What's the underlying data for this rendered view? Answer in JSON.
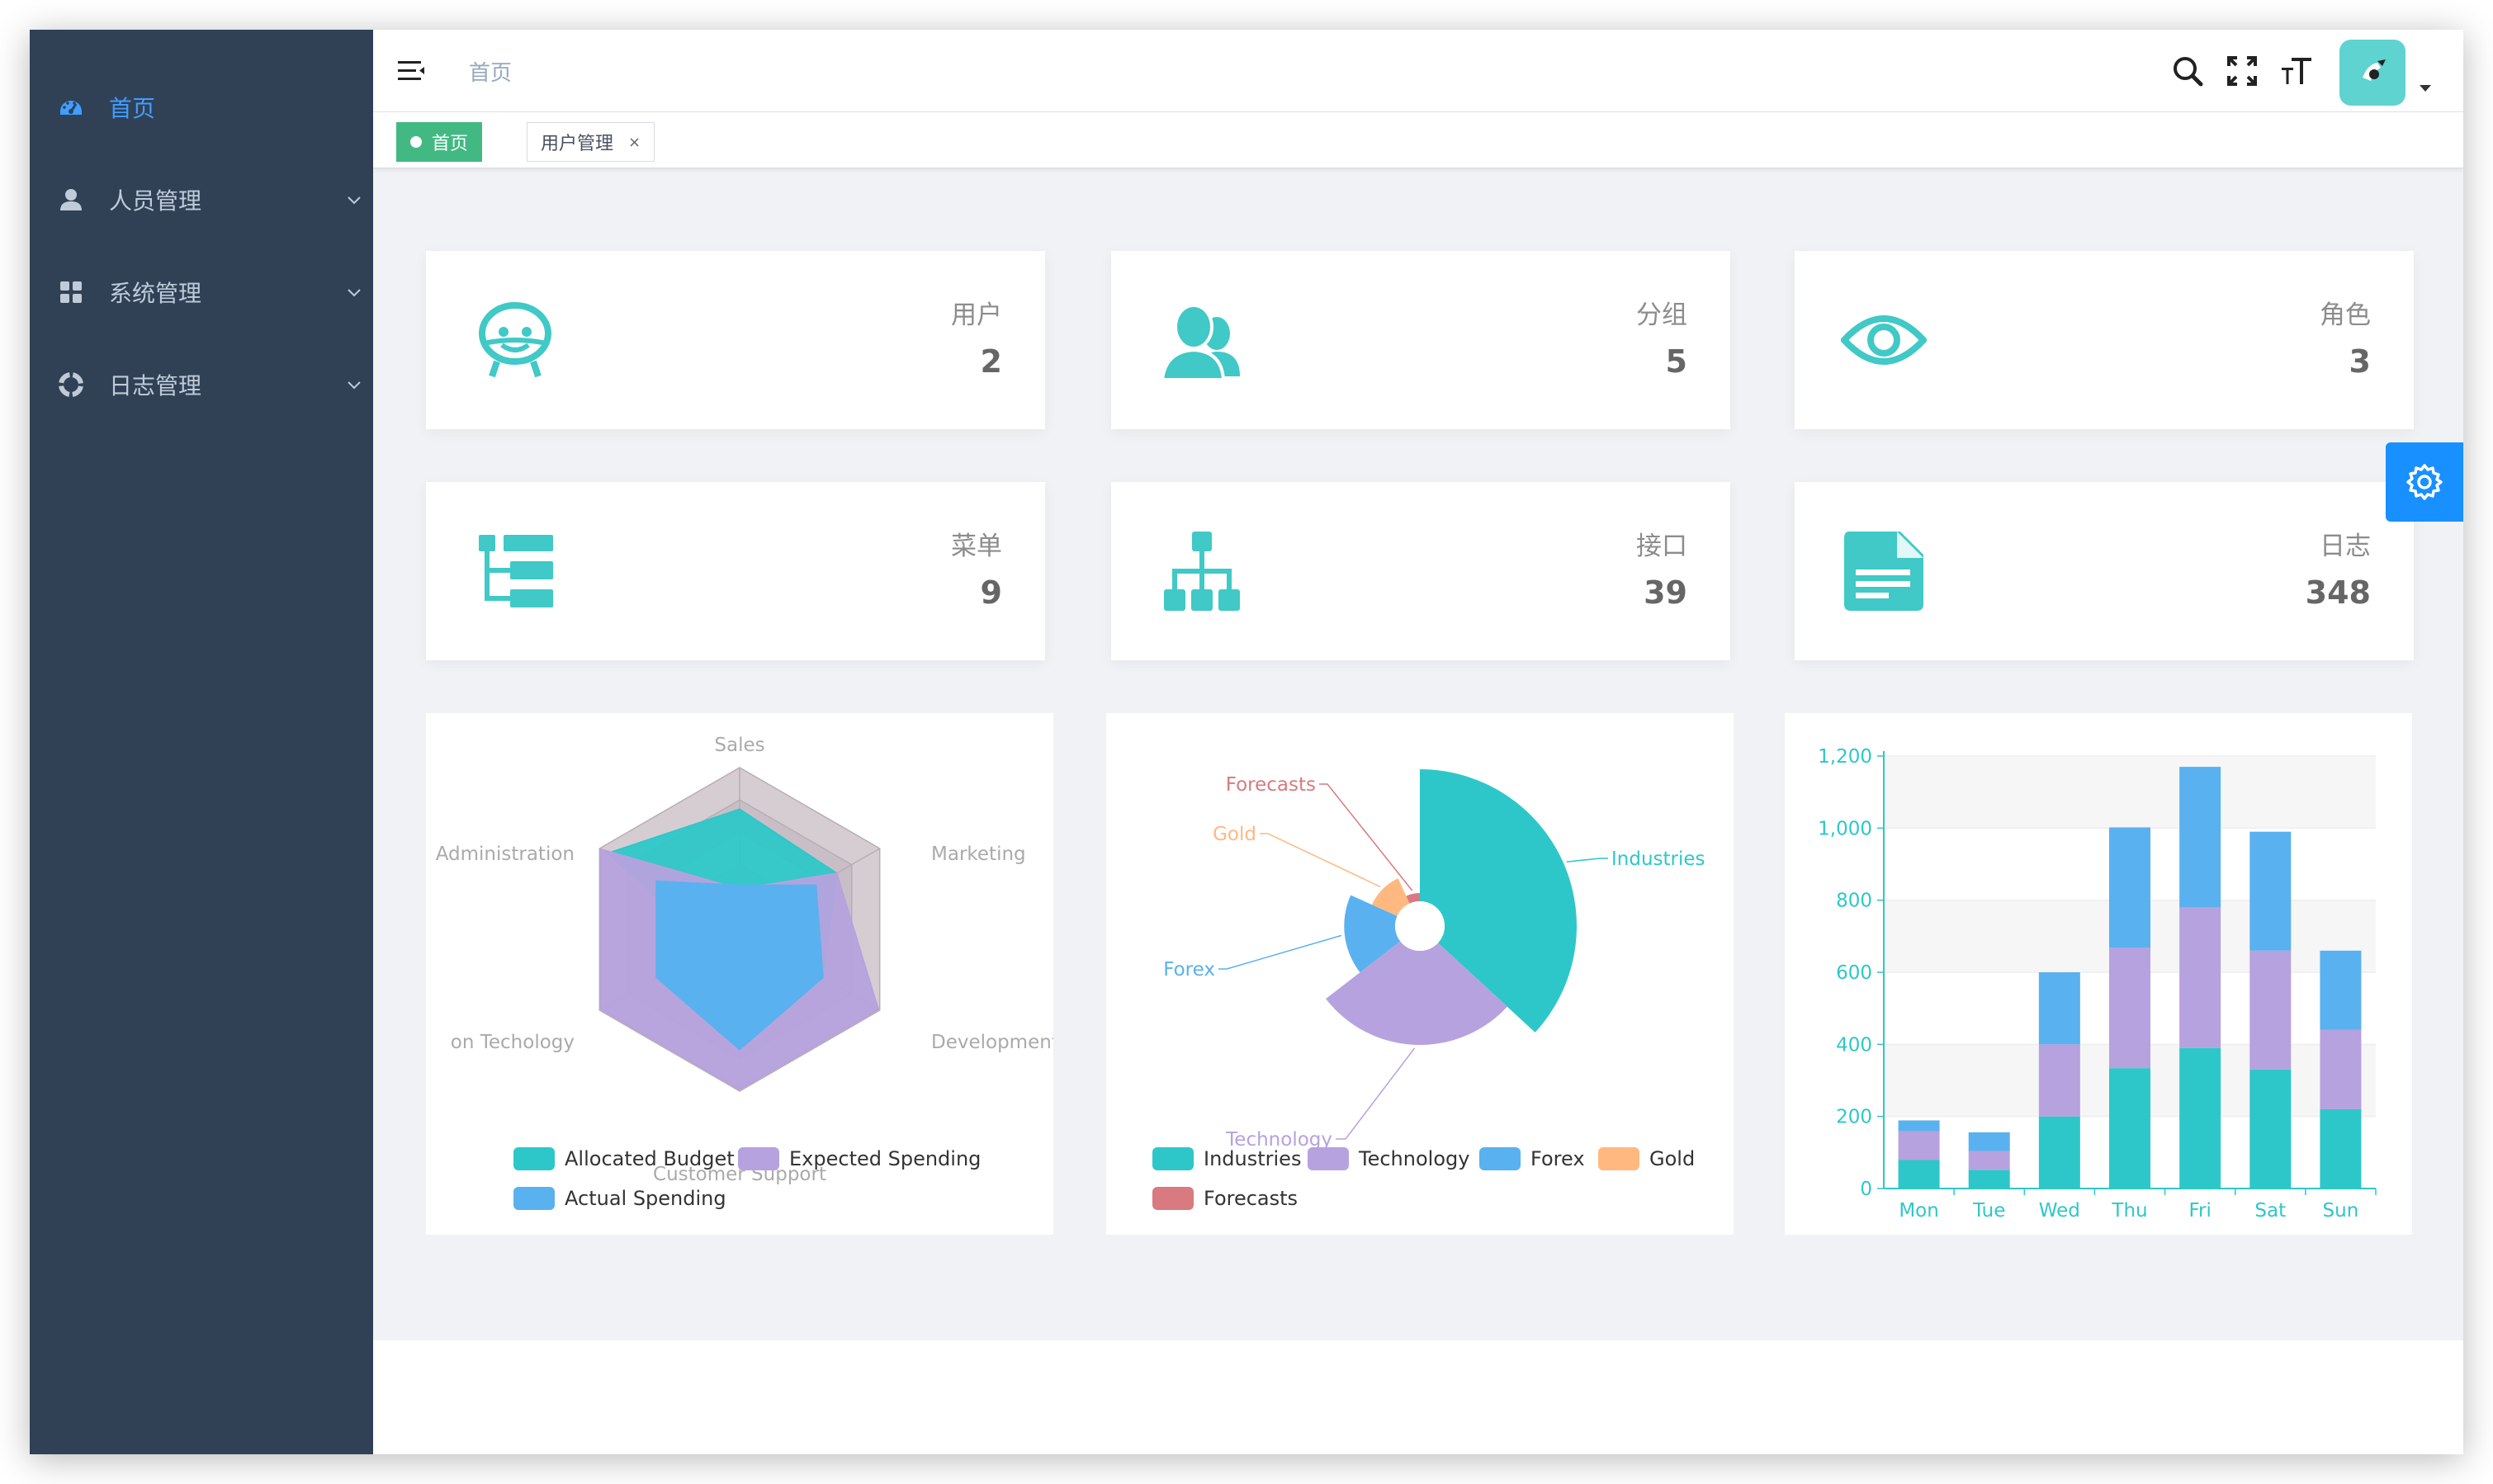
{
  "sidebar": {
    "items": [
      {
        "label": "首页",
        "icon": "dashboard-icon",
        "active": true
      },
      {
        "label": "人员管理",
        "icon": "user-icon"
      },
      {
        "label": "系统管理",
        "icon": "grid-icon"
      },
      {
        "label": "日志管理",
        "icon": "lifebuoy-icon"
      }
    ]
  },
  "navbar": {
    "breadcrumb": "首页"
  },
  "tags": [
    {
      "label": "首页",
      "active": true
    },
    {
      "label": "用户管理",
      "close": "×"
    }
  ],
  "cards": [
    {
      "label": "用户",
      "value": "2",
      "icon": "robot-face-icon"
    },
    {
      "label": "分组",
      "value": "5",
      "icon": "group-icon"
    },
    {
      "label": "角色",
      "value": "3",
      "icon": "eye-icon"
    },
    {
      "label": "菜单",
      "value": "9",
      "icon": "tree-table-icon"
    },
    {
      "label": "接口",
      "value": "39",
      "icon": "sitemap-icon"
    },
    {
      "label": "日志",
      "value": "348",
      "icon": "document-icon"
    }
  ],
  "colors": {
    "teal": "#2ec7c9",
    "purple": "#b6a2de",
    "blue": "#5ab1ef",
    "orange": "#ffb980",
    "red": "#d87a80",
    "accent": "#409eff"
  },
  "chart_data": [
    {
      "type": "radar",
      "indicators": [
        "Sales",
        "Marketing",
        "Development",
        "Customer Support",
        "on Techology",
        "Administration"
      ],
      "max": 20000,
      "series": [
        {
          "name": "Allocated Budget",
          "values": [
            15000,
            14000,
            12000,
            11000,
            4200,
            19000
          ]
        },
        {
          "name": "Expected Spending",
          "values": [
            5000,
            14000,
            28000,
            31000,
            42000,
            21000
          ]
        },
        {
          "name": "Actual Spending",
          "values": [
            5500,
            11000,
            12000,
            15000,
            12000,
            12000
          ]
        }
      ],
      "legend": [
        "Allocated Budget",
        "Expected Spending",
        "Actual Spending"
      ]
    },
    {
      "type": "pie",
      "rose": "radius",
      "slices": [
        {
          "name": "Industries",
          "value": 320
        },
        {
          "name": "Technology",
          "value": 240
        },
        {
          "name": "Forex",
          "value": 149
        },
        {
          "name": "Gold",
          "value": 100
        },
        {
          "name": "Forecasts",
          "value": 59
        }
      ],
      "legend": [
        "Industries",
        "Technology",
        "Forex",
        "Gold",
        "Forecasts"
      ]
    },
    {
      "type": "bar",
      "stacked": true,
      "categories": [
        "Mon",
        "Tue",
        "Wed",
        "Thu",
        "Fri",
        "Sat",
        "Sun"
      ],
      "series": [
        {
          "values": [
            79,
            52,
            200,
            334,
            390,
            330,
            220
          ]
        },
        {
          "values": [
            80,
            52,
            200,
            334,
            390,
            330,
            220
          ]
        },
        {
          "values": [
            30,
            52,
            200,
            334,
            390,
            330,
            220
          ]
        }
      ],
      "yticks": [
        "0",
        "200",
        "400",
        "600",
        "800",
        "1,000",
        "1,200"
      ],
      "ylim": [
        0,
        1200
      ]
    }
  ]
}
